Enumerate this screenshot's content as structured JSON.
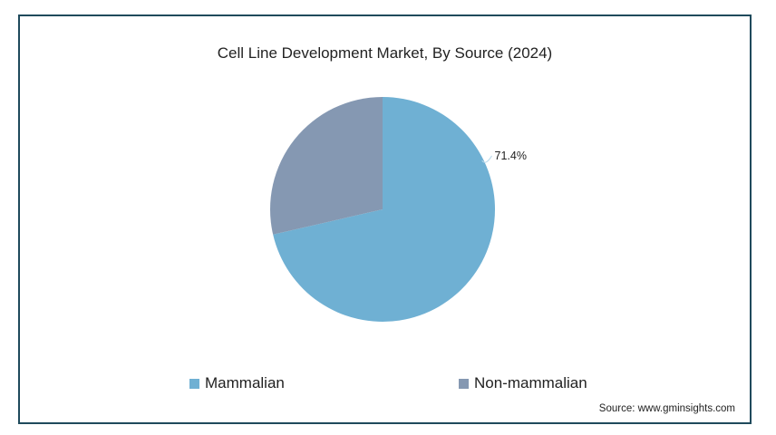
{
  "chart_data": {
    "type": "pie",
    "title": "Cell Line Development Market, By Source (2024)",
    "slices": [
      {
        "name": "Mammalian",
        "value": 71.4,
        "label": "71.4%",
        "color": "#6fb0d3"
      },
      {
        "name": "Non-mammalian",
        "value": 28.6,
        "label": "",
        "color": "#8598b2"
      }
    ],
    "legend_position": "bottom"
  },
  "legend": {
    "items": [
      {
        "label": "Mammalian",
        "color": "#6fb0d3"
      },
      {
        "label": "Non-mammalian",
        "color": "#8598b2"
      }
    ]
  },
  "source": "Source: www.gminsights.com",
  "colors": {
    "border": "#1f4a5c"
  }
}
